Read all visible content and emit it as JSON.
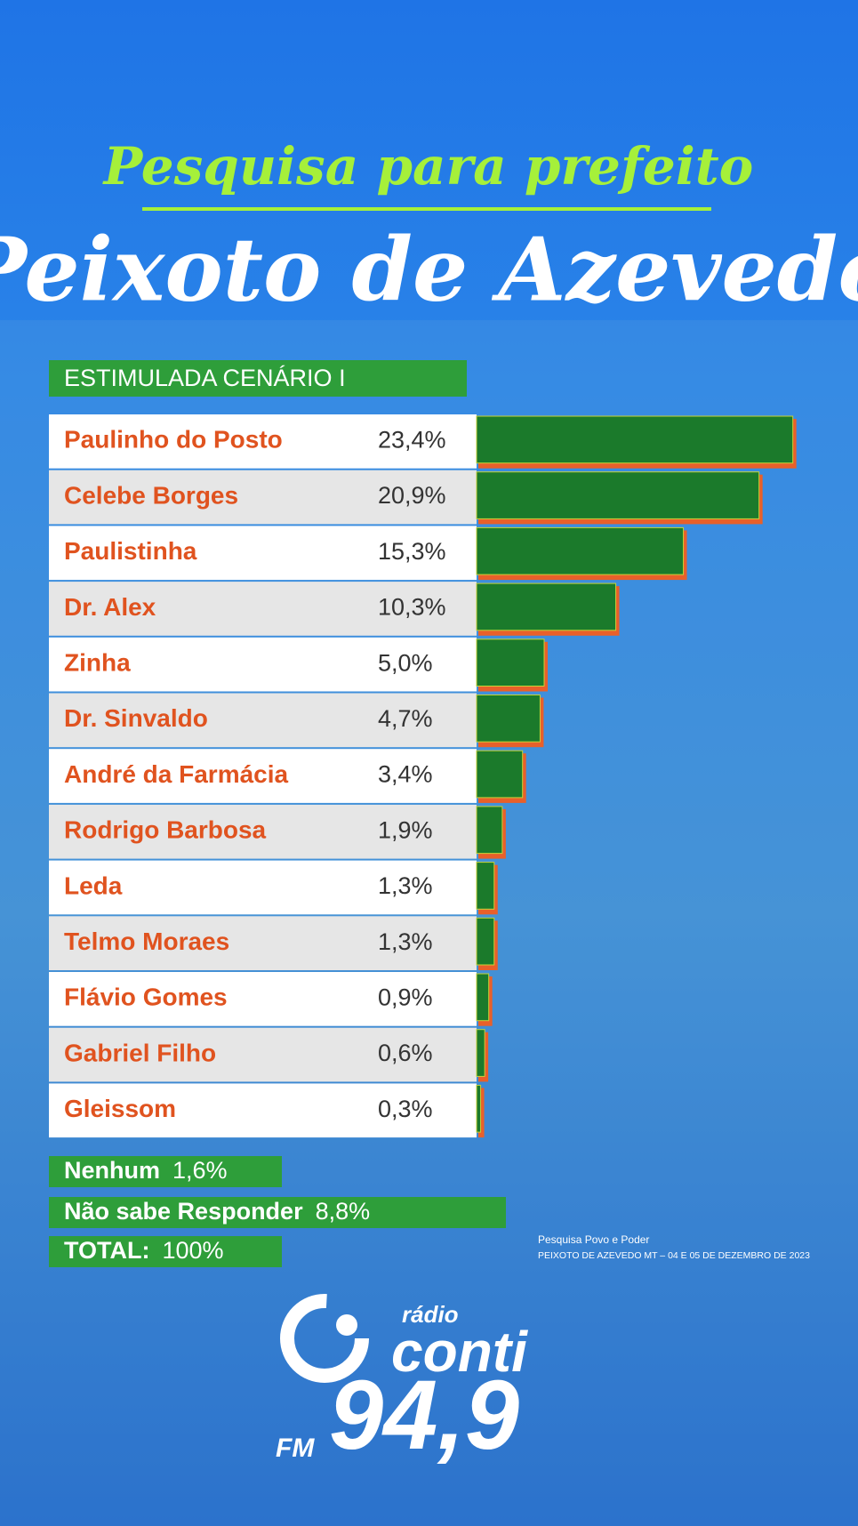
{
  "title": "Pesquisa para prefeito",
  "subtitle": "Peixoto de Azevedo",
  "chart_data": {
    "type": "bar",
    "orientation": "horizontal",
    "title": "ESTIMULADA CENÁRIO I",
    "categories": [
      "Paulinho do Posto",
      "Celebe Borges",
      "Paulistinha",
      "Dr. Alex",
      "Zinha",
      "Dr. Sinvaldo",
      "André da Farmácia",
      "Rodrigo Barbosa",
      "Leda",
      "Telmo Moraes",
      "Flávio Gomes",
      "Gabriel Filho",
      "Gleissom"
    ],
    "values": [
      23.4,
      20.9,
      15.3,
      10.3,
      5.0,
      4.7,
      3.4,
      1.9,
      1.3,
      1.3,
      0.9,
      0.6,
      0.3
    ],
    "value_labels": [
      "23,4%",
      "20,9%",
      "15,3%",
      "10,3%",
      "5,0%",
      "4,7%",
      "3,4%",
      "1,9%",
      "1,3%",
      "1,3%",
      "0,9%",
      "0,6%",
      "0,3%"
    ],
    "color": "#1b7a2b"
  },
  "summary": [
    {
      "label": "Nenhum",
      "value": "1,6%"
    },
    {
      "label": "Não sabe Responder",
      "value": "8,8%"
    },
    {
      "label": "TOTAL:",
      "value": "100%"
    }
  ],
  "source": [
    "Pesquisa Povo e Poder",
    "PEIXOTO DE AZEVEDO MT – 04 E 05 DE DEZEMBRO DE 2023"
  ],
  "logo": {
    "brand": "rádio",
    "name": "conti",
    "band": "FM",
    "frequency": "94,9"
  }
}
